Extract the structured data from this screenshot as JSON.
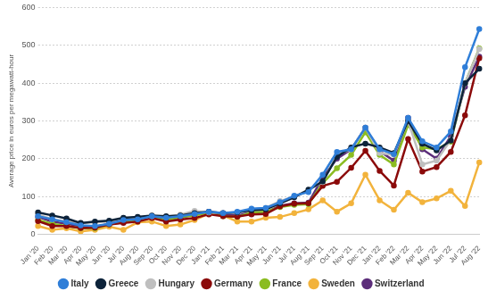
{
  "chart_data": {
    "type": "line",
    "y_label": "Average price in euros per megawatt-hour",
    "categories": [
      "Jan '20",
      "Feb '20",
      "Mar '20",
      "Apr '20",
      "May '20",
      "Jun '20",
      "Jul '20",
      "Aug '20",
      "Sep '20",
      "Oct '20",
      "Nov '20",
      "Dec '20",
      "Jan '21",
      "Feb '21",
      "Mar '21",
      "Apr '21",
      "May '21",
      "Jun '21",
      "Jul '21",
      "Aug '21",
      "Sep '21",
      "Oct '21",
      "Nov '21",
      "Dec '21",
      "Jan '22",
      "Feb '22",
      "Mar '22",
      "Apr '22",
      "May '22",
      "Jun '22",
      "Jul '22",
      "Aug '22"
    ],
    "series": [
      {
        "name": "Italy",
        "color": "#2f7ed8",
        "values": [
          48,
          40,
          32,
          24,
          22,
          28,
          38,
          40,
          48,
          44,
          48,
          54,
          60,
          56,
          60,
          68,
          70,
          85,
          102,
          112,
          158,
          218,
          225,
          282,
          225,
          212,
          308,
          246,
          230,
          272,
          442,
          543
        ]
      },
      {
        "name": "Greece",
        "color": "#0d233a",
        "values": [
          58,
          50,
          42,
          30,
          34,
          36,
          44,
          46,
          50,
          48,
          50,
          56,
          60,
          56,
          58,
          64,
          66,
          82,
          98,
          118,
          140,
          205,
          230,
          240,
          230,
          215,
          300,
          240,
          222,
          248,
          400,
          438
        ]
      },
      {
        "name": "Hungary",
        "color": "#bfbfbf",
        "values": [
          52,
          40,
          34,
          30,
          32,
          34,
          40,
          42,
          48,
          46,
          52,
          62,
          58,
          56,
          58,
          66,
          70,
          88,
          100,
          118,
          138,
          210,
          225,
          282,
          215,
          210,
          300,
          185,
          195,
          250,
          400,
          490
        ]
      },
      {
        "name": "Germany",
        "color": "#8b0a0a",
        "values": [
          35,
          22,
          22,
          17,
          18,
          26,
          30,
          34,
          43,
          34,
          39,
          43,
          53,
          48,
          47,
          53,
          54,
          74,
          81,
          82,
          128,
          139,
          176,
          221,
          168,
          129,
          252,
          166,
          178,
          218,
          315,
          466
        ]
      },
      {
        "name": "France",
        "color": "#8bbc21",
        "values": [
          38,
          28,
          22,
          16,
          16,
          26,
          32,
          36,
          44,
          38,
          46,
          50,
          58,
          48,
          46,
          58,
          60,
          72,
          78,
          80,
          135,
          175,
          210,
          270,
          210,
          185,
          290,
          230,
          225,
          245,
          400,
          492
        ]
      },
      {
        "name": "Sweden",
        "color": "#f2b33c",
        "values": [
          22,
          12,
          16,
          8,
          12,
          20,
          12,
          32,
          34,
          22,
          26,
          38,
          55,
          50,
          34,
          34,
          44,
          46,
          56,
          66,
          90,
          60,
          82,
          158,
          90,
          65,
          110,
          85,
          95,
          115,
          75,
          190
        ]
      },
      {
        "name": "Switzerland",
        "color": "#5c2d7a",
        "values": [
          46,
          34,
          28,
          22,
          20,
          28,
          36,
          38,
          46,
          40,
          44,
          52,
          60,
          52,
          50,
          58,
          58,
          76,
          82,
          84,
          150,
          200,
          225,
          282,
          220,
          195,
          308,
          225,
          200,
          260,
          390,
          470
        ]
      }
    ],
    "ylim": [
      0,
      600
    ],
    "yticks": [
      0,
      100,
      200,
      300,
      400,
      500,
      600
    ],
    "grid": true,
    "legend": "bottom"
  }
}
